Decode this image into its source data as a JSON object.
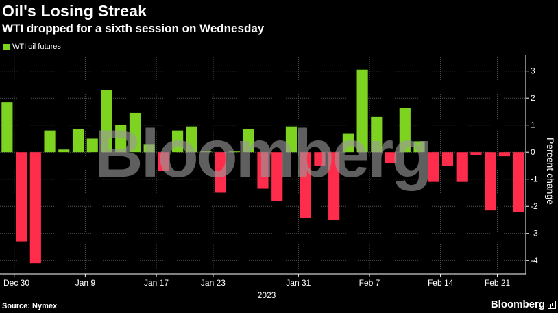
{
  "header": {
    "title": "Oil's Losing Streak",
    "subtitle": "WTI dropped for a sixth session on Wednesday"
  },
  "legend": {
    "label": "WTI oil futures",
    "color": "#7ed321"
  },
  "footer": {
    "source": "Source: Nymex",
    "brand": "Bloomberg"
  },
  "watermark": "Bloomberg",
  "chart_data": {
    "type": "bar",
    "title": "Oil's Losing Streak",
    "subtitle": "WTI dropped for a sixth session on Wednesday",
    "ylabel": "Percent change",
    "year_label": "2023",
    "ylim": [
      -4.5,
      3.6
    ],
    "yticks": [
      3,
      2,
      1,
      0,
      -1,
      -2,
      -3,
      -4
    ],
    "grid": true,
    "legend_position": "top-left",
    "positive_color": "#7ed321",
    "negative_color": "#ff2d4b",
    "x_tick_labels": [
      "Dec 30",
      "Jan 9",
      "Jan 17",
      "Jan 23",
      "Jan 31",
      "Feb 7",
      "Feb 14",
      "Feb 21"
    ],
    "x_tick_positions": [
      1,
      6,
      11,
      15,
      21,
      26,
      31,
      35
    ],
    "series": [
      {
        "name": "WTI oil futures",
        "values": [
          1.85,
          -3.3,
          -4.1,
          0.8,
          0.1,
          0.85,
          0.5,
          2.3,
          1.0,
          1.45,
          0.3,
          -0.7,
          0.8,
          0.95,
          0.0,
          -1.5,
          0.0,
          0.85,
          -1.35,
          -1.8,
          0.95,
          -2.45,
          -0.5,
          -2.5,
          0.7,
          3.05,
          1.3,
          -0.4,
          1.65,
          0.4,
          -1.1,
          -0.5,
          -1.1,
          -0.1,
          -2.15,
          -0.15,
          -2.2
        ]
      }
    ]
  }
}
